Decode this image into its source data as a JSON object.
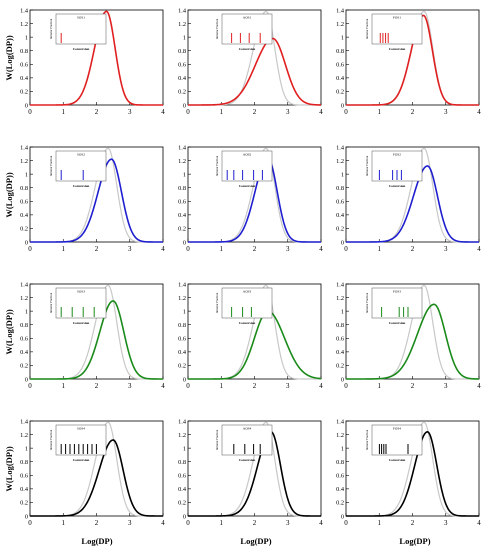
{
  "figure": {
    "ylabel": "W(Log(DP))",
    "xlabel": "Log(DP)",
    "reference_color": "#c8c8c8"
  },
  "chart_data": [
    {
      "type": "line",
      "row": 1,
      "col": 1,
      "color": "#e02020",
      "xlim": [
        0,
        4
      ],
      "ylim": [
        0,
        1.4
      ],
      "xticks": [
        0,
        1,
        2,
        3,
        4
      ],
      "yticks": [
        0,
        0.2,
        0.4,
        0.6,
        0.8,
        1.0,
        1.2,
        1.4
      ],
      "series": [
        {
          "peak_x": 2.3,
          "peak_y": 1.38,
          "width_left": 0.36,
          "width_right": 0.26
        }
      ],
      "reference": null,
      "inset": {
        "title": "SOS1",
        "ylabel": "Initiator Fraction",
        "xlabel": "Conversion",
        "bars": [
          0.05
        ]
      }
    },
    {
      "type": "line",
      "row": 1,
      "col": 2,
      "color": "#e02020",
      "xlim": [
        0,
        4
      ],
      "ylim": [
        0,
        1.4
      ],
      "xticks": [
        0,
        1,
        2,
        3,
        4
      ],
      "yticks": [
        0,
        0.2,
        0.4,
        0.6,
        0.8,
        1.0,
        1.2,
        1.4
      ],
      "series": [
        {
          "peak_x": 2.55,
          "peak_y": 0.98,
          "width_left": 0.52,
          "width_right": 0.38
        }
      ],
      "reference": {
        "peak_x": 2.35,
        "peak_y": 1.38,
        "width_left": 0.38,
        "width_right": 0.26
      },
      "inset": {
        "title": "AOS1",
        "ylabel": "Initiator Fraction",
        "xlabel": "Conversion",
        "bars": [
          0.15,
          0.35,
          0.55,
          0.8
        ]
      }
    },
    {
      "type": "line",
      "row": 1,
      "col": 3,
      "color": "#e02020",
      "xlim": [
        0,
        4
      ],
      "ylim": [
        0,
        1.4
      ],
      "xticks": [
        0,
        1,
        2,
        3,
        4
      ],
      "yticks": [
        0,
        0.2,
        0.4,
        0.6,
        0.8,
        1.0,
        1.2,
        1.4
      ],
      "series": [
        {
          "peak_x": 2.33,
          "peak_y": 1.32,
          "width_left": 0.37,
          "width_right": 0.27
        }
      ],
      "reference": {
        "peak_x": 2.35,
        "peak_y": 1.38,
        "width_left": 0.38,
        "width_right": 0.26
      },
      "inset": {
        "title": "FOS1",
        "ylabel": "Initiator Fraction",
        "xlabel": "Conversion",
        "bars": [
          0.12,
          0.18,
          0.24,
          0.3
        ]
      }
    },
    {
      "type": "line",
      "row": 2,
      "col": 1,
      "color": "#1f1fd0",
      "xlim": [
        0,
        4
      ],
      "ylim": [
        0,
        1.4
      ],
      "xticks": [
        0,
        1,
        2,
        3,
        4
      ],
      "yticks": [
        0,
        0.2,
        0.4,
        0.6,
        0.8,
        1.0,
        1.2,
        1.4
      ],
      "series": [
        {
          "peak_x": 2.45,
          "peak_y": 1.22,
          "width_left": 0.4,
          "width_right": 0.3
        }
      ],
      "reference": {
        "peak_x": 2.35,
        "peak_y": 1.38,
        "width_left": 0.38,
        "width_right": 0.26
      },
      "inset": {
        "title": "SOS2",
        "ylabel": "Initiator Fraction",
        "xlabel": "Conversion",
        "bars": [
          0.05,
          0.55
        ]
      }
    },
    {
      "type": "line",
      "row": 2,
      "col": 2,
      "color": "#1f1fd0",
      "xlim": [
        0,
        4
      ],
      "ylim": [
        0,
        1.4
      ],
      "xticks": [
        0,
        1,
        2,
        3,
        4
      ],
      "yticks": [
        0,
        0.2,
        0.4,
        0.6,
        0.8,
        1.0,
        1.2,
        1.4
      ],
      "series": [
        {
          "peak_x": 2.4,
          "peak_y": 1.24,
          "width_left": 0.38,
          "width_right": 0.28
        }
      ],
      "reference": {
        "peak_x": 2.35,
        "peak_y": 1.38,
        "width_left": 0.38,
        "width_right": 0.26
      },
      "inset": {
        "title": "AOS2",
        "ylabel": "Initiator Fraction",
        "xlabel": "Conversion",
        "bars": [
          0.05,
          0.2,
          0.4,
          0.65,
          0.85
        ]
      }
    },
    {
      "type": "line",
      "row": 2,
      "col": 3,
      "color": "#1f1fd0",
      "xlim": [
        0,
        4
      ],
      "ylim": [
        0,
        1.4
      ],
      "xticks": [
        0,
        1,
        2,
        3,
        4
      ],
      "yticks": [
        0,
        0.2,
        0.4,
        0.6,
        0.8,
        1.0,
        1.2,
        1.4
      ],
      "series": [
        {
          "peak_x": 2.45,
          "peak_y": 1.12,
          "width_left": 0.42,
          "width_right": 0.3
        }
      ],
      "reference": {
        "peak_x": 2.35,
        "peak_y": 1.38,
        "width_left": 0.38,
        "width_right": 0.26
      },
      "inset": {
        "title": "FOS2",
        "ylabel": "Initiator Fraction",
        "xlabel": "Conversion",
        "bars": [
          0.1,
          0.4,
          0.5,
          0.6
        ]
      }
    },
    {
      "type": "line",
      "row": 3,
      "col": 1,
      "color": "#1a8a1a",
      "xlim": [
        0,
        4
      ],
      "ylim": [
        0,
        1.4
      ],
      "xticks": [
        0,
        1,
        2,
        3,
        4
      ],
      "yticks": [
        0,
        0.2,
        0.4,
        0.6,
        0.8,
        1.0,
        1.2,
        1.4
      ],
      "series": [
        {
          "peak_x": 2.5,
          "peak_y": 1.15,
          "width_left": 0.4,
          "width_right": 0.32
        }
      ],
      "reference": {
        "peak_x": 2.35,
        "peak_y": 1.38,
        "width_left": 0.38,
        "width_right": 0.26
      },
      "inset": {
        "title": "SOS3",
        "ylabel": "Initiator Fraction",
        "xlabel": "Conversion",
        "bars": [
          0.05,
          0.3,
          0.55,
          0.8
        ]
      }
    },
    {
      "type": "line",
      "row": 3,
      "col": 2,
      "color": "#1a8a1a",
      "xlim": [
        0,
        4
      ],
      "ylim": [
        0,
        1.4
      ],
      "xticks": [
        0,
        1,
        2,
        3,
        4
      ],
      "yticks": [
        0,
        0.2,
        0.4,
        0.6,
        0.8,
        1.0,
        1.2,
        1.4
      ],
      "series": [
        {
          "peak_x": 2.4,
          "peak_y": 1.0,
          "width_left": 0.4,
          "width_right": 0.5
        }
      ],
      "reference": {
        "peak_x": 2.35,
        "peak_y": 1.38,
        "width_left": 0.38,
        "width_right": 0.26
      },
      "inset": {
        "title": "AOS3",
        "ylabel": "Initiator Fraction",
        "xlabel": "Conversion",
        "bars": [
          0.15,
          0.4,
          0.6
        ]
      }
    },
    {
      "type": "line",
      "row": 3,
      "col": 3,
      "color": "#1a8a1a",
      "xlim": [
        0,
        4
      ],
      "ylim": [
        0,
        1.4
      ],
      "xticks": [
        0,
        1,
        2,
        3,
        4
      ],
      "yticks": [
        0,
        0.2,
        0.4,
        0.6,
        0.8,
        1.0,
        1.2,
        1.4
      ],
      "series": [
        {
          "peak_x": 2.65,
          "peak_y": 1.1,
          "width_left": 0.5,
          "width_right": 0.34
        }
      ],
      "reference": {
        "peak_x": 2.35,
        "peak_y": 1.38,
        "width_left": 0.38,
        "width_right": 0.26
      },
      "inset": {
        "title": "FOS3",
        "ylabel": "Initiator Fraction",
        "xlabel": "Conversion",
        "bars": [
          0.15,
          0.55,
          0.65,
          0.75
        ]
      }
    },
    {
      "type": "line",
      "row": 4,
      "col": 1,
      "color": "#000000",
      "xlim": [
        0,
        4
      ],
      "ylim": [
        0,
        1.4
      ],
      "xticks": [
        0,
        1,
        2,
        3,
        4
      ],
      "yticks": [
        0,
        0.2,
        0.4,
        0.6,
        0.8,
        1.0,
        1.2,
        1.4
      ],
      "series": [
        {
          "peak_x": 2.5,
          "peak_y": 1.12,
          "width_left": 0.42,
          "width_right": 0.3
        }
      ],
      "reference": {
        "peak_x": 2.35,
        "peak_y": 1.38,
        "width_left": 0.38,
        "width_right": 0.26
      },
      "inset": {
        "title": "SOS4",
        "ylabel": "Initiator Fraction",
        "xlabel": "Conversion",
        "bars": [
          0.05,
          0.15,
          0.25,
          0.35,
          0.45,
          0.55,
          0.65,
          0.75,
          0.85
        ]
      }
    },
    {
      "type": "line",
      "row": 4,
      "col": 2,
      "color": "#000000",
      "xlim": [
        0,
        4
      ],
      "ylim": [
        0,
        1.4
      ],
      "xticks": [
        0,
        1,
        2,
        3,
        4
      ],
      "yticks": [
        0,
        0.2,
        0.4,
        0.6,
        0.8,
        1.0,
        1.2,
        1.4
      ],
      "series": [
        {
          "peak_x": 2.5,
          "peak_y": 1.24,
          "width_left": 0.4,
          "width_right": 0.28
        }
      ],
      "reference": {
        "peak_x": 2.35,
        "peak_y": 1.38,
        "width_left": 0.38,
        "width_right": 0.26
      },
      "inset": {
        "title": "AOS4",
        "ylabel": "Initiator Fraction",
        "xlabel": "Conversion",
        "bars": [
          0.2,
          0.45,
          0.65,
          0.8
        ]
      }
    },
    {
      "type": "line",
      "row": 4,
      "col": 3,
      "color": "#000000",
      "xlim": [
        0,
        4
      ],
      "ylim": [
        0,
        1.4
      ],
      "xticks": [
        0,
        1,
        2,
        3,
        4
      ],
      "yticks": [
        0,
        0.2,
        0.4,
        0.6,
        0.8,
        1.0,
        1.2,
        1.4
      ],
      "series": [
        {
          "peak_x": 2.45,
          "peak_y": 1.24,
          "width_left": 0.38,
          "width_right": 0.28
        }
      ],
      "reference": {
        "peak_x": 2.35,
        "peak_y": 1.38,
        "width_left": 0.38,
        "width_right": 0.26
      },
      "inset": {
        "title": "FOS4",
        "ylabel": "Initiator Fraction",
        "xlabel": "Conversion",
        "bars": [
          0.1,
          0.15,
          0.2,
          0.25,
          0.75
        ]
      }
    }
  ]
}
